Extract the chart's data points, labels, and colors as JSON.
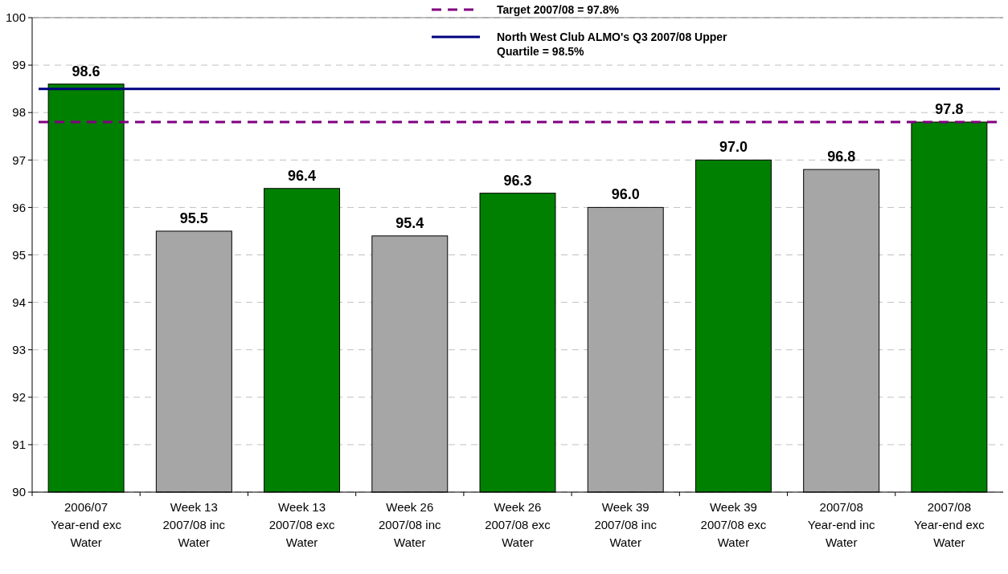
{
  "chart_data": {
    "type": "bar",
    "categories": [
      "2006/07 Year-end exc Water",
      "Week 13 2007/08 inc Water",
      "Week 13 2007/08 exc Water",
      "Week 26 2007/08 inc Water",
      "Week 26 2007/08 exc Water",
      "Week 39 2007/08 inc Water",
      "Week 39 2007/08 exc Water",
      "2007/08 Year-end inc Water",
      "2007/08 Year-end exc Water"
    ],
    "values": [
      98.6,
      95.5,
      96.4,
      95.4,
      96.3,
      96.0,
      97.0,
      96.8,
      97.8
    ],
    "value_labels": [
      "98.6",
      "95.5",
      "96.4",
      "95.4",
      "96.3",
      "96.0",
      "97.0",
      "96.8",
      "97.8"
    ],
    "colors": [
      "#008000",
      "#a6a6a6",
      "#008000",
      "#a6a6a6",
      "#008000",
      "#a6a6a6",
      "#008000",
      "#a6a6a6",
      "#008000"
    ],
    "ylim": [
      90,
      100
    ],
    "yticks": [
      90,
      91,
      92,
      93,
      94,
      95,
      96,
      97,
      98,
      99,
      100
    ],
    "grid": "y",
    "ref_lines": [
      {
        "axis": "y",
        "value": 97.8,
        "label": "Target 2007/08 = 97.8%",
        "color": "#800080",
        "line_style": "dashed"
      },
      {
        "axis": "y",
        "value": 98.5,
        "label": "North West Club ALMO's Q3 2007/08 Upper Quartile = 98.5%",
        "color": "#000080",
        "line_style": "solid"
      }
    ],
    "legend": "top"
  }
}
